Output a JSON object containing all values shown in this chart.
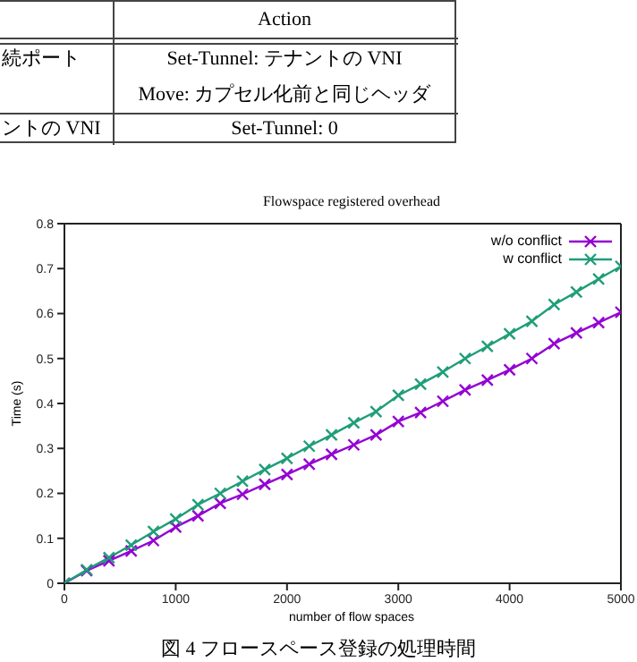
{
  "chart_data": {
    "type": "line",
    "title": "Flowspace registered overhead",
    "xlabel": "number of flow spaces",
    "ylabel": "Time (s)",
    "annotations": [
      "Action",
      "続ポート",
      "Set-Tunnel: テナントの VNI",
      "Move: カプセル化前と同じヘッダ",
      "ントの VNI",
      "Set-Tunnel: 0",
      "図 4  フロースペース登録の処理時間"
    ],
    "x": [
      0,
      200,
      400,
      600,
      800,
      1000,
      1200,
      1400,
      1600,
      1800,
      2000,
      2200,
      2400,
      2600,
      2800,
      3000,
      3200,
      3400,
      3600,
      3800,
      4000,
      4200,
      4400,
      4600,
      4800,
      5000
    ],
    "series": [
      {
        "name": "w/o conflict",
        "color": "#9400d3",
        "values": [
          0,
          0.028,
          0.05,
          0.072,
          0.095,
          0.125,
          0.15,
          0.178,
          0.198,
          0.22,
          0.242,
          0.265,
          0.287,
          0.308,
          0.33,
          0.36,
          0.38,
          0.405,
          0.43,
          0.452,
          0.475,
          0.5,
          0.533,
          0.557,
          0.58,
          0.603
        ]
      },
      {
        "name": "w conflict",
        "color": "#1f9e78",
        "values": [
          0,
          0.03,
          0.057,
          0.085,
          0.115,
          0.143,
          0.175,
          0.2,
          0.227,
          0.253,
          0.278,
          0.305,
          0.33,
          0.357,
          0.382,
          0.418,
          0.443,
          0.47,
          0.5,
          0.527,
          0.555,
          0.583,
          0.62,
          0.648,
          0.677,
          0.705
        ]
      }
    ],
    "xlim": [
      0,
      5000
    ],
    "xticks": [
      0,
      1000,
      2000,
      3000,
      4000,
      5000
    ],
    "ylim": [
      0,
      0.8
    ],
    "yticks": [
      0,
      0.1,
      0.2,
      0.3,
      0.4,
      0.5,
      0.6,
      0.7,
      0.8
    ],
    "legend": "top right",
    "marker": "cross",
    "line_style": "solid",
    "grid": false
  }
}
